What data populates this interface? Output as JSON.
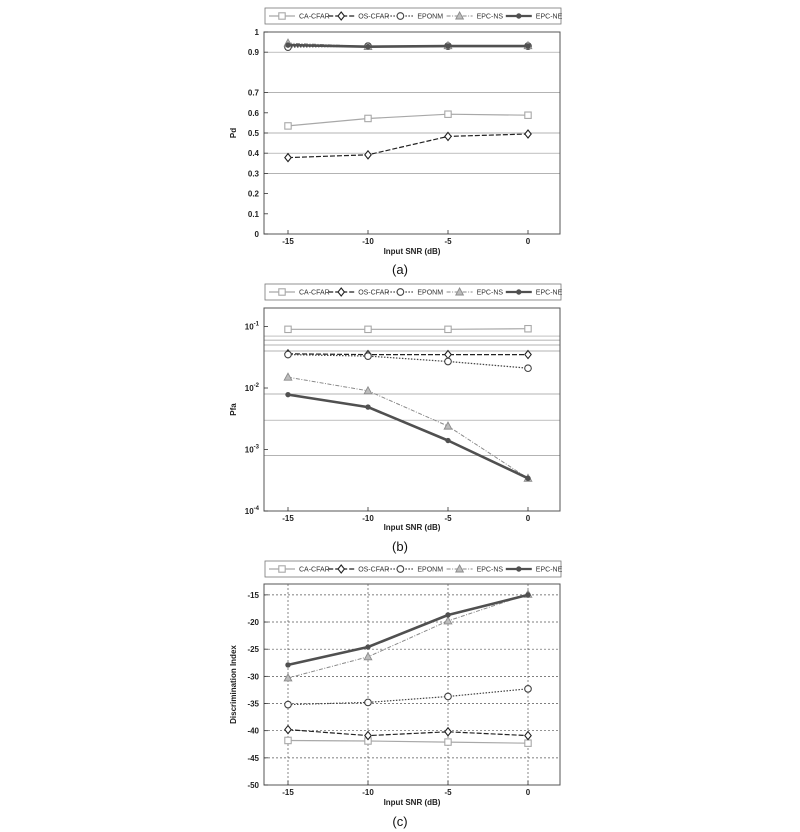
{
  "legend_entries": [
    "CA-CFAR",
    "OS-CFAR",
    "EPONM",
    "EPC-NS",
    "EPC-NE"
  ],
  "series_style": {
    "CA-CFAR": {
      "color": "#a8a8a8",
      "dash": "",
      "marker": "square",
      "width": 1.2
    },
    "OS-CFAR": {
      "color": "#222222",
      "dash": "5,2",
      "marker": "diamond",
      "width": 1.2
    },
    "EPONM": {
      "color": "#444444",
      "dash": "1.5,1.5",
      "marker": "circle",
      "width": 1.2
    },
    "EPC-NS": {
      "color": "#8a8a8a",
      "dash": "4,1.5,1,1.5",
      "marker": "triangle",
      "width": 1.0
    },
    "EPC-NE": {
      "color": "#505050",
      "dash": "",
      "marker": "dot",
      "width": 2.6
    }
  },
  "chart_data": [
    {
      "type": "line",
      "caption": "(a)",
      "xlabel": "Input SNR (dB)",
      "ylabel": "Pd",
      "x": [
        -15,
        -10,
        -5,
        0
      ],
      "xticks": [
        "-15",
        "-10",
        "-5",
        "0"
      ],
      "xlim": [
        -16.5,
        2
      ],
      "ylim": [
        0,
        1
      ],
      "yscale": "linear",
      "yticks": [
        {
          "v": 0,
          "label": "0"
        },
        {
          "v": 0.1,
          "label": "0.1"
        },
        {
          "v": 0.2,
          "label": "0.2"
        },
        {
          "v": 0.3,
          "label": "0.3"
        },
        {
          "v": 0.4,
          "label": "0.4"
        },
        {
          "v": 0.5,
          "label": "0.5"
        },
        {
          "v": 0.6,
          "label": "0.6"
        },
        {
          "v": 0.7,
          "label": "0.7"
        },
        {
          "v": 0.9,
          "label": "0.9"
        },
        {
          "v": 1,
          "label": "1"
        }
      ],
      "grid": "horizontal",
      "gridlines": [
        0.3,
        0.4,
        0.5,
        0.7,
        0.9
      ],
      "series": [
        {
          "name": "CA-CFAR",
          "values": [
            0.535,
            0.572,
            0.593,
            0.588
          ]
        },
        {
          "name": "OS-CFAR",
          "values": [
            0.378,
            0.392,
            0.483,
            0.495
          ]
        },
        {
          "name": "EPONM",
          "values": [
            0.925,
            0.93,
            0.93,
            0.93
          ]
        },
        {
          "name": "EPC-NS",
          "values": [
            0.945,
            0.928,
            0.932,
            0.932
          ]
        },
        {
          "name": "EPC-NE",
          "values": [
            0.935,
            0.927,
            0.93,
            0.93
          ]
        }
      ]
    },
    {
      "type": "line",
      "caption": "(b)",
      "xlabel": "Input SNR (dB)",
      "ylabel": "Pfa",
      "x": [
        -15,
        -10,
        -5,
        0
      ],
      "xticks": [
        "-15",
        "-10",
        "-5",
        "0"
      ],
      "xlim": [
        -16.5,
        2
      ],
      "ylim": [
        0.0001,
        0.2
      ],
      "yscale": "log",
      "yticks": [
        {
          "v": 0.0001,
          "label": "10",
          "exp": "-4"
        },
        {
          "v": 0.001,
          "label": "10",
          "exp": "-3"
        },
        {
          "v": 0.01,
          "label": "10",
          "exp": "-2"
        },
        {
          "v": 0.1,
          "label": "10",
          "exp": "-1"
        }
      ],
      "grid": "horizontal",
      "gridlines": [
        0.0008,
        0.003,
        0.008,
        0.04,
        0.05,
        0.06,
        0.07
      ],
      "series": [
        {
          "name": "CA-CFAR",
          "values": [
            0.09,
            0.09,
            0.09,
            0.092
          ]
        },
        {
          "name": "OS-CFAR",
          "values": [
            0.036,
            0.035,
            0.035,
            0.035
          ]
        },
        {
          "name": "EPONM",
          "values": [
            0.035,
            0.033,
            0.027,
            0.021
          ]
        },
        {
          "name": "EPC-NS",
          "values": [
            0.015,
            0.009,
            0.0024,
            0.00034
          ]
        },
        {
          "name": "EPC-NE",
          "values": [
            0.0078,
            0.0049,
            0.0014,
            0.00034
          ]
        }
      ]
    },
    {
      "type": "line",
      "caption": "(c)",
      "xlabel": "Input SNR (dB)",
      "ylabel": "Discrimination Index",
      "x": [
        -15,
        -10,
        -5,
        0
      ],
      "xticks": [
        "-15",
        "-10",
        "-5",
        "0"
      ],
      "xlim": [
        -16.5,
        2
      ],
      "ylim": [
        -50,
        -13
      ],
      "yscale": "linear",
      "yticks": [
        {
          "v": -50,
          "label": "-50"
        },
        {
          "v": -45,
          "label": "-45"
        },
        {
          "v": -40,
          "label": "-40"
        },
        {
          "v": -35,
          "label": "-35"
        },
        {
          "v": -30,
          "label": "-30"
        },
        {
          "v": -25,
          "label": "-25"
        },
        {
          "v": -20,
          "label": "-20"
        },
        {
          "v": -15,
          "label": "-15"
        }
      ],
      "grid": "both",
      "gridlines": [
        -45,
        -40,
        -35,
        -30,
        -25,
        -20,
        -15
      ],
      "series": [
        {
          "name": "CA-CFAR",
          "values": [
            -41.8,
            -41.9,
            -42.1,
            -42.3
          ]
        },
        {
          "name": "OS-CFAR",
          "values": [
            -39.8,
            -40.9,
            -40.2,
            -40.9
          ]
        },
        {
          "name": "EPONM",
          "values": [
            -35.2,
            -34.8,
            -33.7,
            -32.3
          ]
        },
        {
          "name": "EPC-NS",
          "values": [
            -30.3,
            -26.4,
            -19.8,
            -14.9
          ]
        },
        {
          "name": "EPC-NE",
          "values": [
            -27.9,
            -24.6,
            -18.7,
            -15.0
          ]
        }
      ]
    }
  ]
}
